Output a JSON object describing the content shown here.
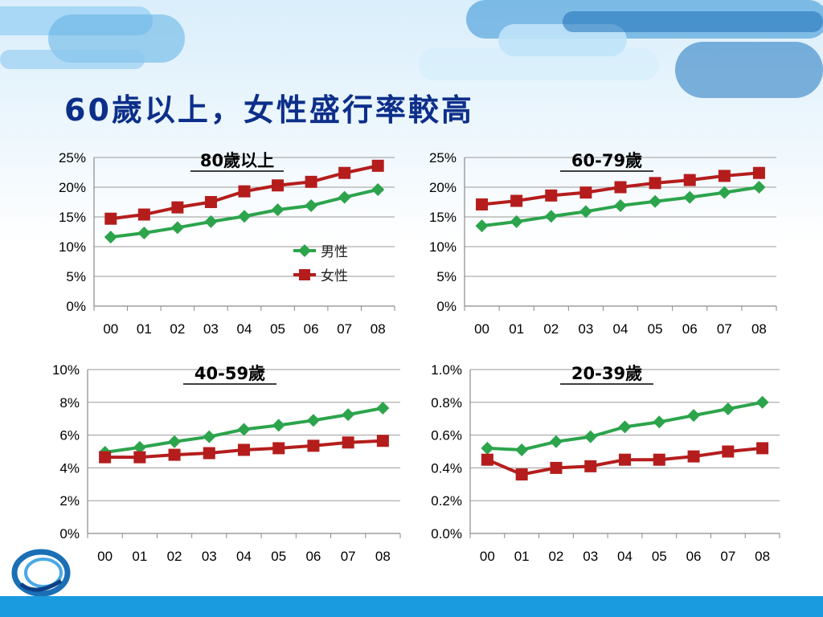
{
  "slide": {
    "title": "60歲以上，女性盛行率較高"
  },
  "colors": {
    "male": "#2ca44c",
    "female": "#b51d1d",
    "title": "#0d2f8a",
    "bottom_bar": "#1a9be0"
  },
  "legend": {
    "male": "男性",
    "female": "女性"
  },
  "chart_data": [
    {
      "type": "line",
      "title": "80歲以上",
      "categories": [
        "00",
        "01",
        "02",
        "03",
        "04",
        "05",
        "06",
        "07",
        "08"
      ],
      "yticks": [
        "0%",
        "5%",
        "10%",
        "15%",
        "20%",
        "25%"
      ],
      "ylim": [
        0,
        25
      ],
      "series": [
        {
          "name": "男性",
          "marker": "diamond",
          "values": [
            11.6,
            12.3,
            13.2,
            14.2,
            15.1,
            16.2,
            16.9,
            18.3,
            19.6
          ]
        },
        {
          "name": "女性",
          "marker": "square",
          "values": [
            14.7,
            15.4,
            16.6,
            17.5,
            19.3,
            20.3,
            20.9,
            22.4,
            23.6
          ]
        }
      ]
    },
    {
      "type": "line",
      "title": "60-79歲",
      "categories": [
        "00",
        "01",
        "02",
        "03",
        "04",
        "05",
        "06",
        "07",
        "08"
      ],
      "yticks": [
        "0%",
        "5%",
        "10%",
        "15%",
        "20%",
        "25%"
      ],
      "ylim": [
        0,
        25
      ],
      "series": [
        {
          "name": "男性",
          "marker": "diamond",
          "values": [
            13.5,
            14.2,
            15.1,
            15.9,
            16.9,
            17.6,
            18.3,
            19.1,
            20.0
          ]
        },
        {
          "name": "女性",
          "marker": "square",
          "values": [
            17.1,
            17.7,
            18.6,
            19.1,
            20.0,
            20.7,
            21.2,
            21.9,
            22.4
          ]
        }
      ]
    },
    {
      "type": "line",
      "title": "40-59歲",
      "categories": [
        "00",
        "01",
        "02",
        "03",
        "04",
        "05",
        "06",
        "07",
        "08"
      ],
      "yticks": [
        "0%",
        "2%",
        "4%",
        "6%",
        "8%",
        "10%"
      ],
      "ylim": [
        0,
        10
      ],
      "series": [
        {
          "name": "男性",
          "marker": "diamond",
          "values": [
            4.95,
            5.25,
            5.6,
            5.9,
            6.35,
            6.6,
            6.9,
            7.25,
            7.65
          ]
        },
        {
          "name": "女性",
          "marker": "square",
          "values": [
            4.65,
            4.65,
            4.8,
            4.9,
            5.1,
            5.2,
            5.35,
            5.55,
            5.65
          ]
        }
      ]
    },
    {
      "type": "line",
      "title": "20-39歲",
      "categories": [
        "00",
        "01",
        "02",
        "03",
        "04",
        "05",
        "06",
        "07",
        "08"
      ],
      "yticks": [
        "0.0%",
        "0.2%",
        "0.4%",
        "0.6%",
        "0.8%",
        "1.0%"
      ],
      "ylim": [
        0,
        1.0
      ],
      "series": [
        {
          "name": "男性",
          "marker": "diamond",
          "values": [
            0.52,
            0.51,
            0.56,
            0.59,
            0.65,
            0.68,
            0.72,
            0.76,
            0.8
          ]
        },
        {
          "name": "女性",
          "marker": "square",
          "values": [
            0.45,
            0.36,
            0.4,
            0.41,
            0.45,
            0.45,
            0.47,
            0.5,
            0.52
          ]
        }
      ]
    }
  ]
}
